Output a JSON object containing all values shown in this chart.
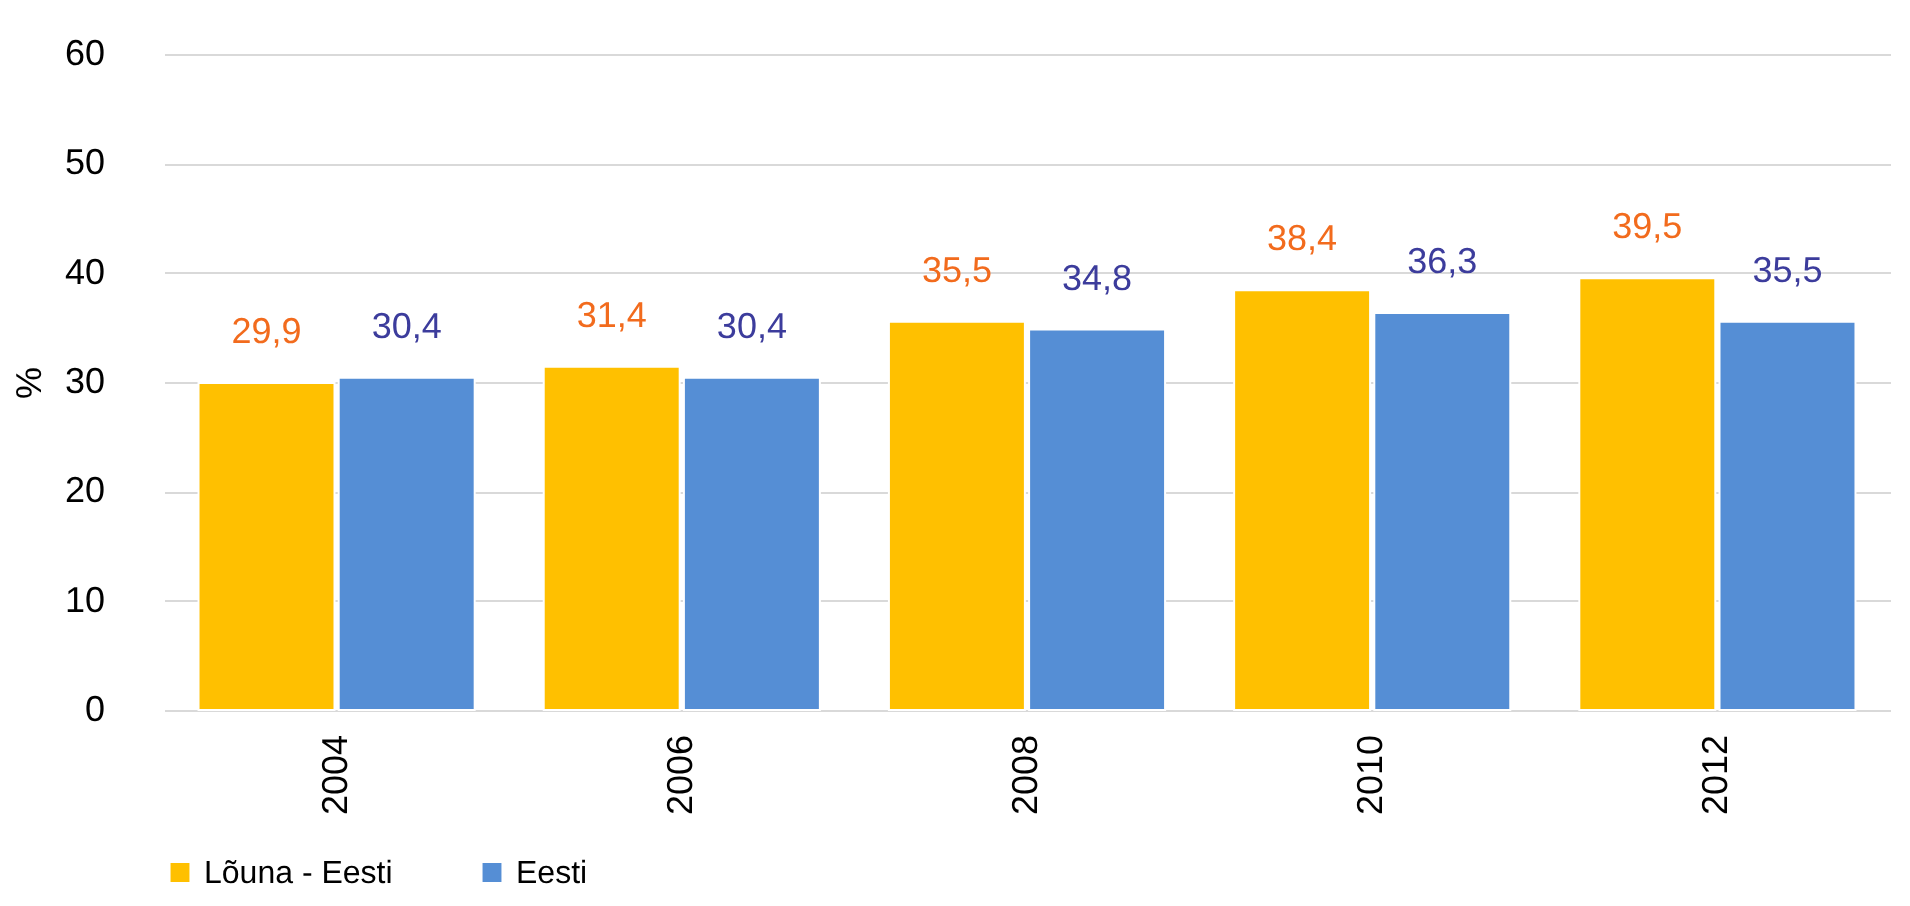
{
  "chart_data": {
    "type": "bar",
    "ylabel": "%",
    "categories": [
      "2004",
      "2006",
      "2008",
      "2010",
      "2012"
    ],
    "series": [
      {
        "name": "Lõuna - Eesti",
        "color": "#ffc000",
        "values": [
          29.9,
          31.4,
          35.5,
          38.4,
          39.5
        ],
        "value_labels": [
          "29,9",
          "31,4",
          "35,5",
          "38,4",
          "39,5"
        ]
      },
      {
        "name": "Eesti",
        "color": "#558ed5",
        "values": [
          30.4,
          30.4,
          34.8,
          36.3,
          35.5
        ],
        "value_labels": [
          "30,4",
          "30,4",
          "34,8",
          "36,3",
          "35,5"
        ]
      }
    ],
    "ylim": [
      0,
      60
    ],
    "yticks": [
      0,
      10,
      20,
      30,
      40,
      50,
      60
    ],
    "grid": "y",
    "legend": "bottom"
  }
}
